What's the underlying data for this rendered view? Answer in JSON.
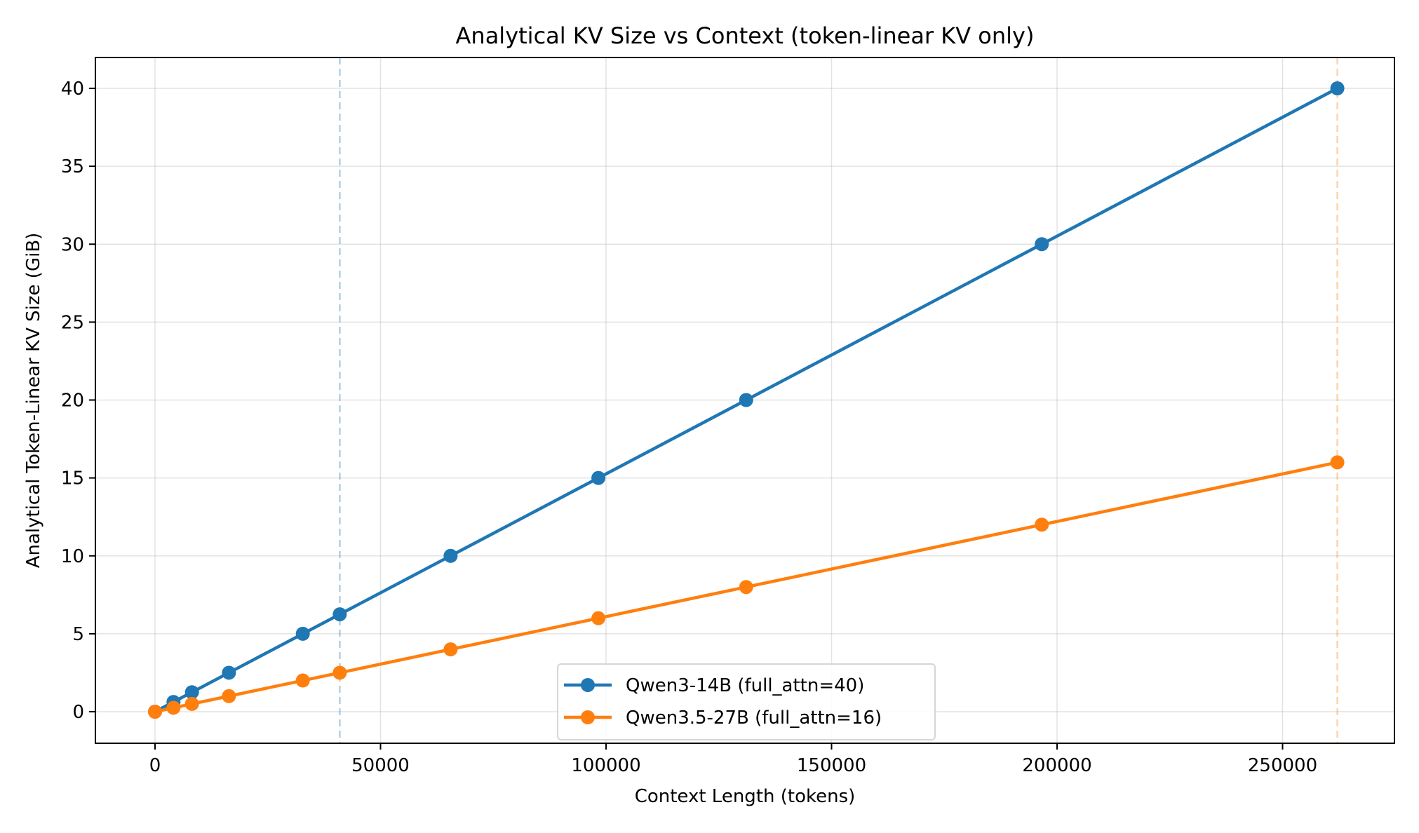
{
  "chart_data": {
    "type": "line",
    "title": "Analytical KV Size vs Context (token-linear KV only)",
    "xlabel": "Context Length (tokens)",
    "ylabel": "Analytical Token-Linear KV Size (GiB)",
    "xlim": [
      -10240,
      272384
    ],
    "ylim": [
      -2,
      42
    ],
    "xticks": [
      0,
      50000,
      100000,
      150000,
      200000,
      250000
    ],
    "xtick_labels": [
      "0",
      "50000",
      "100000",
      "150000",
      "200000",
      "250000"
    ],
    "yticks": [
      0,
      5,
      10,
      15,
      20,
      25,
      30,
      35,
      40
    ],
    "ytick_labels": [
      "0",
      "5",
      "10",
      "15",
      "20",
      "25",
      "30",
      "35",
      "40"
    ],
    "grid": true,
    "legend_position": "lower center",
    "x": [
      0,
      4096,
      8192,
      16384,
      32768,
      40960,
      65536,
      98304,
      131072,
      196608,
      262144
    ],
    "series": [
      {
        "name": "Qwen3-14B (full_attn=40)",
        "color": "#1f77b4",
        "values": [
          0,
          0.625,
          1.25,
          2.5,
          5,
          6.25,
          10,
          15,
          20,
          30,
          40
        ]
      },
      {
        "name": "Qwen3.5-27B (full_attn=16)",
        "color": "#ff7f0e",
        "values": [
          0,
          0.25,
          0.5,
          1,
          2,
          2.5,
          4,
          6,
          8,
          12,
          16
        ]
      }
    ],
    "reference_lines": [
      {
        "orientation": "vertical",
        "x": 40960,
        "color": "#1f77b4",
        "style": "dashed",
        "alpha": 0.35
      },
      {
        "orientation": "vertical",
        "x": 262144,
        "color": "#ff7f0e",
        "style": "dashed",
        "alpha": 0.35
      }
    ]
  }
}
